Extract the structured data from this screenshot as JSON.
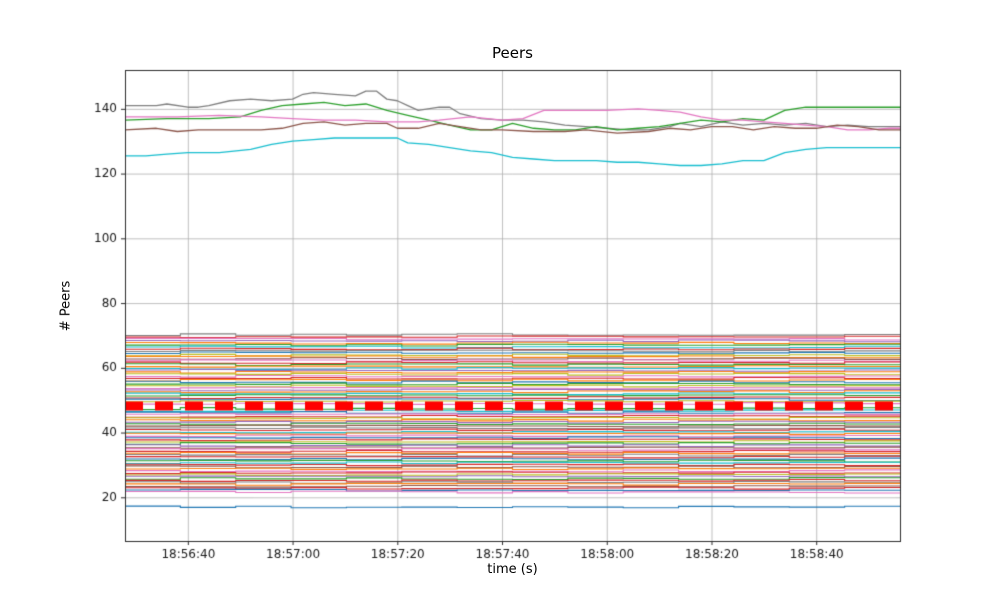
{
  "figure": {
    "title": "Peers",
    "xlabel": "time (s)",
    "ylabel": "# Peers",
    "background": "#ffffff"
  },
  "chart_data": {
    "type": "line",
    "title": "Peers",
    "xlabel": "time (s)",
    "ylabel": "# Peers",
    "grid": true,
    "legend": false,
    "grid_color": "#b0b0b0",
    "spine_color": "#2b2b2b",
    "tick_label_color": "#1a1a1a",
    "xlim_seconds": [
      0,
      148
    ],
    "ylim": [
      6.5,
      152
    ],
    "x_ticks": [
      {
        "t": 12,
        "label": "18:56:40"
      },
      {
        "t": 32,
        "label": "18:57:00"
      },
      {
        "t": 52,
        "label": "18:57:20"
      },
      {
        "t": 72,
        "label": "18:57:40"
      },
      {
        "t": 92,
        "label": "18:58:00"
      },
      {
        "t": 112,
        "label": "18:58:20"
      },
      {
        "t": 132,
        "label": "18:58:40"
      }
    ],
    "y_ticks": [
      20,
      40,
      60,
      80,
      100,
      120,
      140
    ],
    "palette": [
      "#1f77b4",
      "#ff7f0e",
      "#2ca02c",
      "#d62728",
      "#9467bd",
      "#8c564b",
      "#e377c2",
      "#7f7f7f",
      "#bcbd22",
      "#17becf"
    ],
    "top_series": [
      {
        "name": "peers-gray",
        "color": "#7f7f7f",
        "points": [
          [
            0,
            141
          ],
          [
            6,
            141
          ],
          [
            8,
            141.5
          ],
          [
            12,
            140.5
          ],
          [
            14,
            140.5
          ],
          [
            16,
            141
          ],
          [
            20,
            142.5
          ],
          [
            24,
            143
          ],
          [
            28,
            142.5
          ],
          [
            32,
            143
          ],
          [
            34,
            144.5
          ],
          [
            36,
            145
          ],
          [
            40,
            144.5
          ],
          [
            44,
            144
          ],
          [
            46,
            145.5
          ],
          [
            48,
            145.5
          ],
          [
            50,
            143
          ],
          [
            52,
            142.5
          ],
          [
            54,
            141
          ],
          [
            56,
            139.5
          ],
          [
            60,
            140.5
          ],
          [
            62,
            140.5
          ],
          [
            64,
            138.5
          ],
          [
            68,
            137
          ],
          [
            72,
            136.5
          ],
          [
            76,
            136.5
          ],
          [
            80,
            136
          ],
          [
            84,
            135
          ],
          [
            88,
            134.5
          ],
          [
            92,
            134
          ],
          [
            96,
            133.5
          ],
          [
            100,
            133.5
          ],
          [
            104,
            134.5
          ],
          [
            106,
            135.5
          ],
          [
            110,
            134.5
          ],
          [
            114,
            136
          ],
          [
            118,
            135
          ],
          [
            122,
            135.5
          ],
          [
            126,
            135
          ],
          [
            130,
            135.5
          ],
          [
            134,
            134.5
          ],
          [
            138,
            135
          ],
          [
            142,
            134.5
          ],
          [
            148,
            134.5
          ]
        ]
      },
      {
        "name": "peers-green",
        "color": "#2ca02c",
        "points": [
          [
            0,
            136.5
          ],
          [
            8,
            137
          ],
          [
            16,
            137
          ],
          [
            22,
            137.5
          ],
          [
            26,
            139.5
          ],
          [
            30,
            141
          ],
          [
            34,
            141.5
          ],
          [
            38,
            142
          ],
          [
            42,
            141
          ],
          [
            46,
            141.5
          ],
          [
            50,
            139.5
          ],
          [
            54,
            138
          ],
          [
            58,
            136.5
          ],
          [
            62,
            135
          ],
          [
            66,
            133.5
          ],
          [
            70,
            133.5
          ],
          [
            74,
            135.5
          ],
          [
            78,
            134
          ],
          [
            82,
            133.5
          ],
          [
            86,
            133.5
          ],
          [
            90,
            134.5
          ],
          [
            94,
            133.5
          ],
          [
            98,
            134
          ],
          [
            102,
            134.5
          ],
          [
            106,
            135.5
          ],
          [
            110,
            136.5
          ],
          [
            114,
            136
          ],
          [
            118,
            137
          ],
          [
            122,
            136.5
          ],
          [
            126,
            139.5
          ],
          [
            130,
            140.5
          ],
          [
            136,
            140.5
          ],
          [
            142,
            140.5
          ],
          [
            148,
            140.5
          ]
        ]
      },
      {
        "name": "peers-pink",
        "color": "#e377c2",
        "points": [
          [
            0,
            137.5
          ],
          [
            10,
            137.5
          ],
          [
            18,
            138
          ],
          [
            26,
            137.5
          ],
          [
            32,
            137
          ],
          [
            38,
            136.5
          ],
          [
            44,
            136.5
          ],
          [
            50,
            136
          ],
          [
            56,
            136
          ],
          [
            60,
            136.5
          ],
          [
            66,
            137.5
          ],
          [
            72,
            136.5
          ],
          [
            76,
            137
          ],
          [
            80,
            139.5
          ],
          [
            86,
            139.5
          ],
          [
            92,
            139.5
          ],
          [
            98,
            140
          ],
          [
            102,
            139.5
          ],
          [
            106,
            139
          ],
          [
            110,
            137.5
          ],
          [
            114,
            136.5
          ],
          [
            118,
            136.5
          ],
          [
            122,
            136
          ],
          [
            126,
            135.5
          ],
          [
            130,
            135
          ],
          [
            134,
            134.5
          ],
          [
            138,
            133.5
          ],
          [
            142,
            133.5
          ],
          [
            146,
            134
          ],
          [
            148,
            134
          ]
        ]
      },
      {
        "name": "peers-brown",
        "color": "#8c564b",
        "points": [
          [
            0,
            133.5
          ],
          [
            6,
            134
          ],
          [
            10,
            133
          ],
          [
            14,
            133.5
          ],
          [
            20,
            133.5
          ],
          [
            26,
            133.5
          ],
          [
            30,
            134
          ],
          [
            34,
            135.5
          ],
          [
            38,
            136
          ],
          [
            42,
            135
          ],
          [
            46,
            135.5
          ],
          [
            50,
            135.5
          ],
          [
            52,
            134
          ],
          [
            56,
            134
          ],
          [
            60,
            135.5
          ],
          [
            64,
            134.5
          ],
          [
            68,
            133.5
          ],
          [
            72,
            133.5
          ],
          [
            78,
            133
          ],
          [
            84,
            133
          ],
          [
            88,
            133.5
          ],
          [
            94,
            132.5
          ],
          [
            100,
            133
          ],
          [
            104,
            134
          ],
          [
            108,
            133.5
          ],
          [
            112,
            134.5
          ],
          [
            116,
            134.5
          ],
          [
            120,
            133.5
          ],
          [
            124,
            134.5
          ],
          [
            128,
            134
          ],
          [
            132,
            134
          ],
          [
            136,
            135
          ],
          [
            140,
            134.5
          ],
          [
            144,
            133.5
          ],
          [
            148,
            133.5
          ]
        ]
      },
      {
        "name": "peers-cyan",
        "color": "#17becf",
        "points": [
          [
            0,
            125.5
          ],
          [
            4,
            125.5
          ],
          [
            8,
            126
          ],
          [
            12,
            126.5
          ],
          [
            18,
            126.5
          ],
          [
            24,
            127.5
          ],
          [
            28,
            129
          ],
          [
            32,
            130
          ],
          [
            36,
            130.5
          ],
          [
            40,
            131
          ],
          [
            48,
            131
          ],
          [
            52,
            131
          ],
          [
            54,
            129.5
          ],
          [
            58,
            129
          ],
          [
            62,
            128
          ],
          [
            66,
            127
          ],
          [
            70,
            126.5
          ],
          [
            74,
            125
          ],
          [
            78,
            124.5
          ],
          [
            82,
            124
          ],
          [
            90,
            124
          ],
          [
            94,
            123.5
          ],
          [
            98,
            123.5
          ],
          [
            102,
            123
          ],
          [
            106,
            122.5
          ],
          [
            110,
            122.5
          ],
          [
            114,
            123
          ],
          [
            118,
            124
          ],
          [
            122,
            124
          ],
          [
            126,
            126.5
          ],
          [
            130,
            127.5
          ],
          [
            134,
            128
          ],
          [
            140,
            128
          ],
          [
            148,
            128
          ]
        ]
      }
    ],
    "band_jitter": 0.3,
    "band_linewidth": 1.1,
    "band_lines": [
      [
        70.3,
        7
      ],
      [
        69.6,
        3
      ],
      [
        68.9,
        6
      ],
      [
        68.3,
        4
      ],
      [
        67.6,
        1
      ],
      [
        67.0,
        2
      ],
      [
        66.4,
        9
      ],
      [
        65.8,
        3
      ],
      [
        65.2,
        7
      ],
      [
        64.6,
        0
      ],
      [
        64.0,
        8
      ],
      [
        63.4,
        1
      ],
      [
        62.8,
        5
      ],
      [
        62.2,
        6
      ],
      [
        61.6,
        3
      ],
      [
        61.0,
        2
      ],
      [
        60.4,
        1
      ],
      [
        59.8,
        9
      ],
      [
        59.2,
        4
      ],
      [
        58.6,
        1
      ],
      [
        58.0,
        8
      ],
      [
        57.4,
        6
      ],
      [
        56.8,
        3
      ],
      [
        56.2,
        1
      ],
      [
        55.6,
        0
      ],
      [
        55.0,
        2
      ],
      [
        54.4,
        8
      ],
      [
        53.8,
        6
      ],
      [
        53.2,
        4
      ],
      [
        52.6,
        1
      ],
      [
        52.0,
        9
      ],
      [
        51.4,
        2
      ],
      [
        50.8,
        3
      ],
      [
        50.2,
        0
      ],
      [
        49.6,
        8
      ],
      [
        49.0,
        6
      ],
      [
        47.4,
        2
      ],
      [
        46.8,
        9
      ],
      [
        46.2,
        0
      ],
      [
        45.6,
        6
      ],
      [
        45.0,
        3
      ],
      [
        44.4,
        8
      ],
      [
        43.8,
        1
      ],
      [
        43.2,
        4
      ],
      [
        42.6,
        2
      ],
      [
        42.0,
        5
      ],
      [
        41.4,
        7
      ],
      [
        40.8,
        3
      ],
      [
        40.2,
        9
      ],
      [
        39.6,
        1
      ],
      [
        39.0,
        6
      ],
      [
        38.4,
        0
      ],
      [
        37.8,
        3
      ],
      [
        37.2,
        8
      ],
      [
        36.6,
        2
      ],
      [
        36.0,
        4
      ],
      [
        35.4,
        5
      ],
      [
        34.8,
        6
      ],
      [
        34.2,
        3
      ],
      [
        33.6,
        1
      ],
      [
        33.0,
        7
      ],
      [
        32.4,
        3
      ],
      [
        31.8,
        0
      ],
      [
        31.2,
        2
      ],
      [
        30.6,
        9
      ],
      [
        30.0,
        3
      ],
      [
        29.4,
        5
      ],
      [
        28.8,
        1
      ],
      [
        28.2,
        6
      ],
      [
        27.6,
        3
      ],
      [
        27.0,
        8
      ],
      [
        26.4,
        4
      ],
      [
        25.8,
        2
      ],
      [
        25.2,
        3
      ],
      [
        24.6,
        7
      ],
      [
        24.0,
        1
      ],
      [
        23.4,
        5
      ],
      [
        22.8,
        3
      ],
      [
        22.2,
        0
      ],
      [
        21.6,
        6
      ],
      [
        17.0,
        0
      ]
    ],
    "red_line": {
      "value": 48.2,
      "color": "#ff0000",
      "linewidth": 9,
      "dash": [
        18,
        12
      ]
    }
  }
}
